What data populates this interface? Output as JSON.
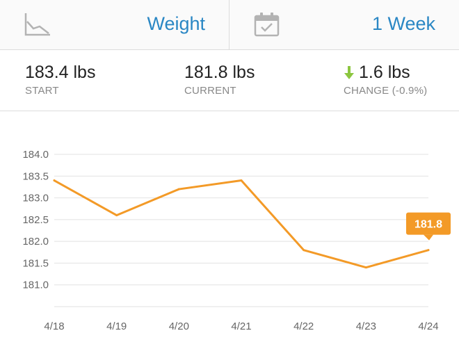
{
  "header": {
    "metric_label": "Weight",
    "metric_icon": "line-chart-icon",
    "range_label": "1 Week",
    "range_icon": "calendar-check-icon",
    "accent_color": "#2a87c4"
  },
  "stats": {
    "start": {
      "value": "183.4 lbs",
      "label": "START"
    },
    "current": {
      "value": "181.8 lbs",
      "label": "CURRENT"
    },
    "change": {
      "value": "1.6 lbs",
      "label": "CHANGE (-0.9%)",
      "direction": "down",
      "arrow_color": "#8cc63f"
    }
  },
  "chart_data": {
    "type": "line",
    "categories": [
      "4/18",
      "4/19",
      "4/20",
      "4/21",
      "4/22",
      "4/23",
      "4/24"
    ],
    "series": [
      {
        "values": [
          183.4,
          182.6,
          183.2,
          183.4,
          181.8,
          181.4,
          181.8
        ],
        "color": "#f39a27"
      }
    ],
    "yticks": [
      "184.0",
      "183.5",
      "183.0",
      "182.5",
      "182.0",
      "181.5",
      "181.0"
    ],
    "ylim": [
      180.5,
      184.0
    ],
    "grid": true,
    "callout": {
      "label": "181.8",
      "color": "#f39a27"
    }
  }
}
